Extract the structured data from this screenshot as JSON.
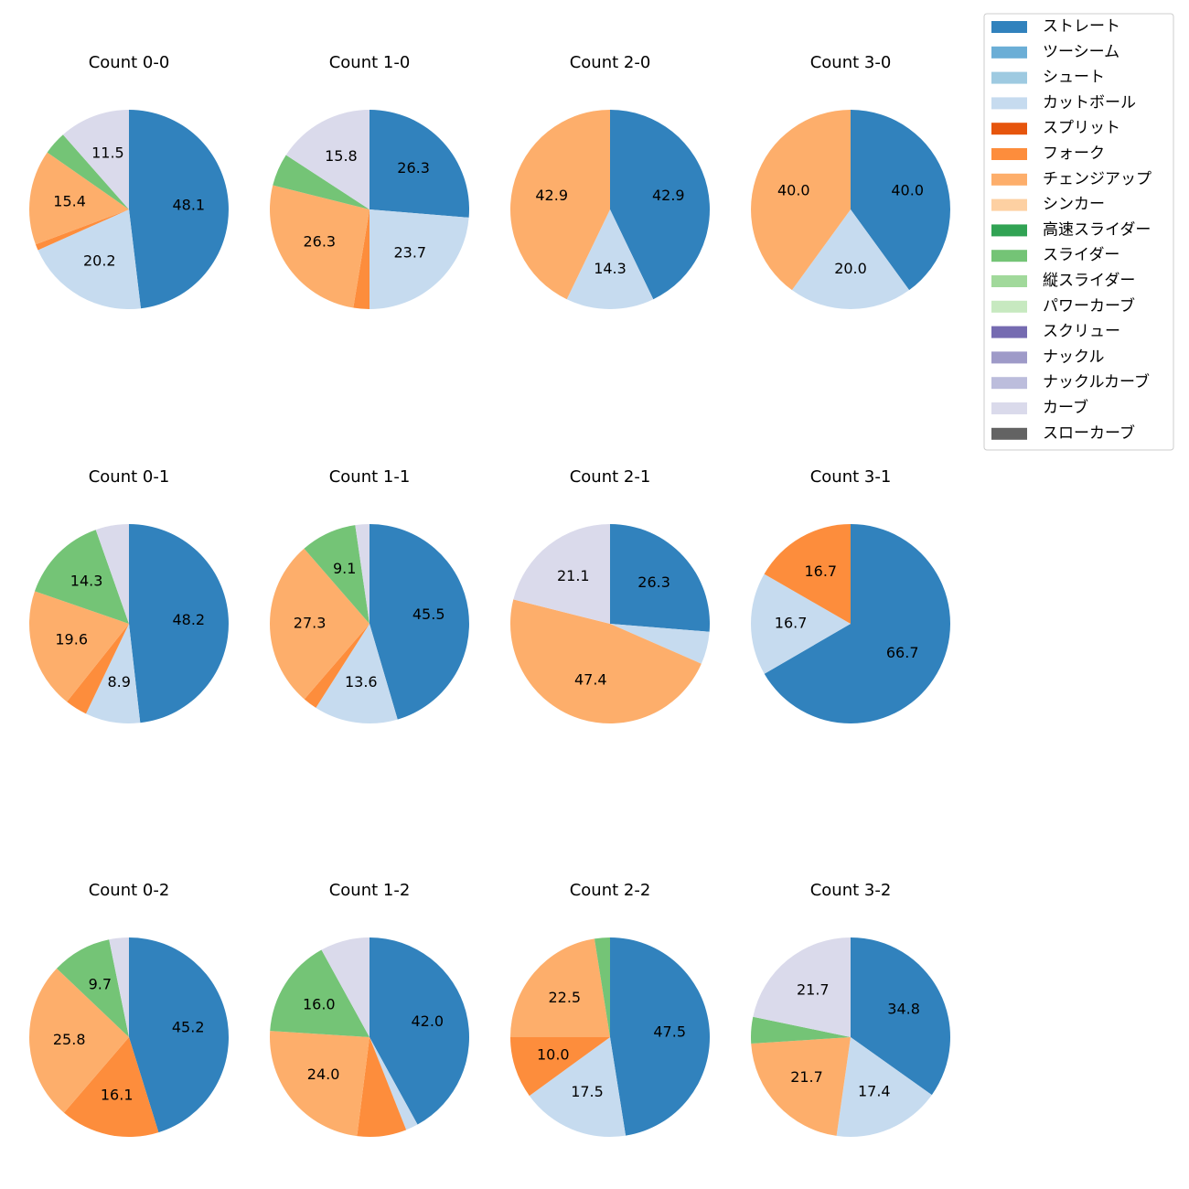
{
  "colors": {
    "ストレート": "#3182bd",
    "ツーシーム": "#6baed6",
    "シュート": "#9ecae1",
    "カットボール": "#c6dbef",
    "スプリット": "#e6550d",
    "フォーク": "#fd8d3c",
    "チェンジアップ": "#fdae6b",
    "シンカー": "#fdd0a2",
    "高速スライダー": "#31a354",
    "スライダー": "#74c476",
    "縦スライダー": "#a1d99b",
    "パワーカーブ": "#c7e9c0",
    "スクリュー": "#756bb1",
    "ナックル": "#9e9ac8",
    "ナックルカーブ": "#bcbddc",
    "カーブ": "#dadaeb",
    "スローカーブ": "#636363"
  },
  "chart_data": {
    "type": "pie",
    "legend": {
      "placement": "top-right",
      "entries": [
        "ストレート",
        "ツーシーム",
        "シュート",
        "カットボール",
        "スプリット",
        "フォーク",
        "チェンジアップ",
        "シンカー",
        "高速スライダー",
        "スライダー",
        "縦スライダー",
        "パワーカーブ",
        "スクリュー",
        "ナックル",
        "ナックルカーブ",
        "カーブ",
        "スローカーブ"
      ]
    },
    "charts": [
      {
        "title": "Count 0-0",
        "slices": [
          {
            "name": "ストレート",
            "value": 48.1,
            "label": "48.1"
          },
          {
            "name": "カットボール",
            "value": 20.2,
            "label": "20.2"
          },
          {
            "name": "フォーク",
            "value": 1.0,
            "label": ""
          },
          {
            "name": "チェンジアップ",
            "value": 15.4,
            "label": "15.4"
          },
          {
            "name": "スライダー",
            "value": 3.8,
            "label": ""
          },
          {
            "name": "カーブ",
            "value": 11.5,
            "label": "11.5"
          }
        ]
      },
      {
        "title": "Count 1-0",
        "slices": [
          {
            "name": "ストレート",
            "value": 26.3,
            "label": "26.3"
          },
          {
            "name": "カットボール",
            "value": 23.7,
            "label": "23.7"
          },
          {
            "name": "フォーク",
            "value": 2.6,
            "label": ""
          },
          {
            "name": "チェンジアップ",
            "value": 26.3,
            "label": "26.3"
          },
          {
            "name": "スライダー",
            "value": 5.3,
            "label": ""
          },
          {
            "name": "カーブ",
            "value": 15.8,
            "label": "15.8"
          }
        ]
      },
      {
        "title": "Count 2-0",
        "slices": [
          {
            "name": "ストレート",
            "value": 42.9,
            "label": "42.9"
          },
          {
            "name": "カットボール",
            "value": 14.3,
            "label": "14.3"
          },
          {
            "name": "チェンジアップ",
            "value": 42.9,
            "label": "42.9"
          }
        ]
      },
      {
        "title": "Count 3-0",
        "slices": [
          {
            "name": "ストレート",
            "value": 40.0,
            "label": "40.0"
          },
          {
            "name": "カットボール",
            "value": 20.0,
            "label": "20.0"
          },
          {
            "name": "チェンジアップ",
            "value": 40.0,
            "label": "40.0"
          }
        ]
      },
      {
        "title": "Count 0-1",
        "slices": [
          {
            "name": "ストレート",
            "value": 48.2,
            "label": "48.2"
          },
          {
            "name": "カットボール",
            "value": 8.9,
            "label": "8.9"
          },
          {
            "name": "フォーク",
            "value": 3.6,
            "label": ""
          },
          {
            "name": "チェンジアップ",
            "value": 19.6,
            "label": "19.6"
          },
          {
            "name": "スライダー",
            "value": 14.3,
            "label": "14.3"
          },
          {
            "name": "カーブ",
            "value": 5.4,
            "label": ""
          }
        ]
      },
      {
        "title": "Count 1-1",
        "slices": [
          {
            "name": "ストレート",
            "value": 45.5,
            "label": "45.5"
          },
          {
            "name": "カットボール",
            "value": 13.6,
            "label": "13.6"
          },
          {
            "name": "フォーク",
            "value": 2.3,
            "label": ""
          },
          {
            "name": "チェンジアップ",
            "value": 27.3,
            "label": "27.3"
          },
          {
            "name": "スライダー",
            "value": 9.1,
            "label": "9.1"
          },
          {
            "name": "カーブ",
            "value": 2.3,
            "label": ""
          }
        ]
      },
      {
        "title": "Count 2-1",
        "slices": [
          {
            "name": "ストレート",
            "value": 26.3,
            "label": "26.3"
          },
          {
            "name": "カットボール",
            "value": 5.3,
            "label": ""
          },
          {
            "name": "チェンジアップ",
            "value": 47.4,
            "label": "47.4"
          },
          {
            "name": "カーブ",
            "value": 21.1,
            "label": "21.1"
          }
        ]
      },
      {
        "title": "Count 3-1",
        "slices": [
          {
            "name": "ストレート",
            "value": 66.7,
            "label": "66.7"
          },
          {
            "name": "カットボール",
            "value": 16.7,
            "label": "16.7"
          },
          {
            "name": "フォーク",
            "value": 16.7,
            "label": "16.7"
          }
        ]
      },
      {
        "title": "Count 0-2",
        "slices": [
          {
            "name": "ストレート",
            "value": 45.2,
            "label": "45.2"
          },
          {
            "name": "フォーク",
            "value": 16.1,
            "label": "16.1"
          },
          {
            "name": "チェンジアップ",
            "value": 25.8,
            "label": "25.8"
          },
          {
            "name": "スライダー",
            "value": 9.7,
            "label": "9.7"
          },
          {
            "name": "カーブ",
            "value": 3.2,
            "label": ""
          }
        ]
      },
      {
        "title": "Count 1-2",
        "slices": [
          {
            "name": "ストレート",
            "value": 42.0,
            "label": "42.0"
          },
          {
            "name": "カットボール",
            "value": 2.0,
            "label": ""
          },
          {
            "name": "フォーク",
            "value": 8.0,
            "label": ""
          },
          {
            "name": "チェンジアップ",
            "value": 24.0,
            "label": "24.0"
          },
          {
            "name": "スライダー",
            "value": 16.0,
            "label": "16.0"
          },
          {
            "name": "カーブ",
            "value": 8.0,
            "label": ""
          }
        ]
      },
      {
        "title": "Count 2-2",
        "slices": [
          {
            "name": "ストレート",
            "value": 47.5,
            "label": "47.5"
          },
          {
            "name": "カットボール",
            "value": 17.5,
            "label": "17.5"
          },
          {
            "name": "フォーク",
            "value": 10.0,
            "label": "10.0"
          },
          {
            "name": "チェンジアップ",
            "value": 22.5,
            "label": "22.5"
          },
          {
            "name": "スライダー",
            "value": 2.5,
            "label": ""
          }
        ]
      },
      {
        "title": "Count 3-2",
        "slices": [
          {
            "name": "ストレート",
            "value": 34.8,
            "label": "34.8"
          },
          {
            "name": "カットボール",
            "value": 17.4,
            "label": "17.4"
          },
          {
            "name": "チェンジアップ",
            "value": 21.7,
            "label": "21.7"
          },
          {
            "name": "スライダー",
            "value": 4.3,
            "label": ""
          },
          {
            "name": "カーブ",
            "value": 21.7,
            "label": "21.7"
          }
        ]
      }
    ]
  }
}
